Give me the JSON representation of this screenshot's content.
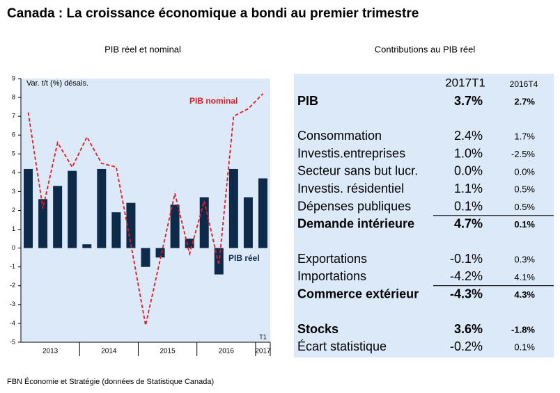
{
  "title": "Canada : La croissance économique a bondi au premier trimestre",
  "chart_data": {
    "type": "bar_line",
    "title": "PIB réel et nominal",
    "ylabel": "Var. t/t (%) désais.",
    "categories": [
      null,
      null,
      null,
      null,
      null,
      null,
      null,
      null,
      null,
      null,
      null,
      null,
      null,
      null,
      null,
      null,
      null
    ],
    "x_groups": [
      "2013",
      "2014",
      "2015",
      "2016",
      "2017"
    ],
    "annotation": "T1",
    "series": [
      {
        "name": "PIB réel",
        "type": "bar",
        "color": "#0e2a4b",
        "values": [
          4.2,
          2.6,
          3.3,
          4.1,
          0.2,
          4.2,
          1.9,
          2.4,
          -1.0,
          -0.5,
          2.3,
          0.5,
          2.7,
          -1.4,
          4.2,
          2.7,
          3.7
        ]
      },
      {
        "name": "PIB nominal",
        "type": "line",
        "color": "#e8191f",
        "values": [
          7.2,
          2.1,
          5.6,
          4.3,
          5.9,
          4.5,
          4.3,
          0.2,
          -4.1,
          -0.6,
          2.9,
          -0.3,
          2.5,
          -0.9,
          7.0,
          7.4,
          8.2
        ]
      }
    ],
    "ylim": [
      -5,
      9
    ],
    "yticks": [
      -5,
      -4,
      -3,
      -2,
      -1,
      0,
      1,
      2,
      3,
      4,
      5,
      6,
      7,
      8,
      9
    ]
  },
  "table": {
    "title": "Contributions au PIB réel",
    "columns": [
      "2017T1",
      "2016T4"
    ],
    "sections": [
      [
        {
          "label": "PIB",
          "values": [
            "3.7%",
            "2.7%"
          ],
          "bold": true
        }
      ],
      [
        {
          "label": "Consommation",
          "values": [
            "2.4%",
            "1.7%"
          ]
        },
        {
          "label": "Investis.entreprises",
          "values": [
            "1.0%",
            "-2.5%"
          ]
        },
        {
          "label": "Secteur sans but lucr.",
          "values": [
            "0.0%",
            "0.0%"
          ]
        },
        {
          "label": "Investis. résidentiel",
          "values": [
            "1.1%",
            "0.5%"
          ]
        },
        {
          "label": "Dépenses publiques",
          "values": [
            "0.1%",
            "0.5%"
          ]
        },
        {
          "label": "Demande intérieure",
          "values": [
            "4.7%",
            "0.1%"
          ],
          "bold": true,
          "total": true
        }
      ],
      [
        {
          "label": "Exportations",
          "values": [
            "-0.1%",
            "0.3%"
          ]
        },
        {
          "label": "Importations",
          "values": [
            "-4.2%",
            "4.1%"
          ]
        },
        {
          "label": "Commerce extérieur",
          "values": [
            "-4.3%",
            "4.3%"
          ],
          "bold": true,
          "total": true
        }
      ],
      [
        {
          "label": "Stocks",
          "values": [
            "3.6%",
            "-1.8%"
          ],
          "bold": true
        },
        {
          "label": "Écart statistique",
          "values": [
            "-0.2%",
            "0.1%"
          ]
        }
      ]
    ]
  },
  "source": "FBN Économie et Stratégie (données de Statistique Canada)"
}
